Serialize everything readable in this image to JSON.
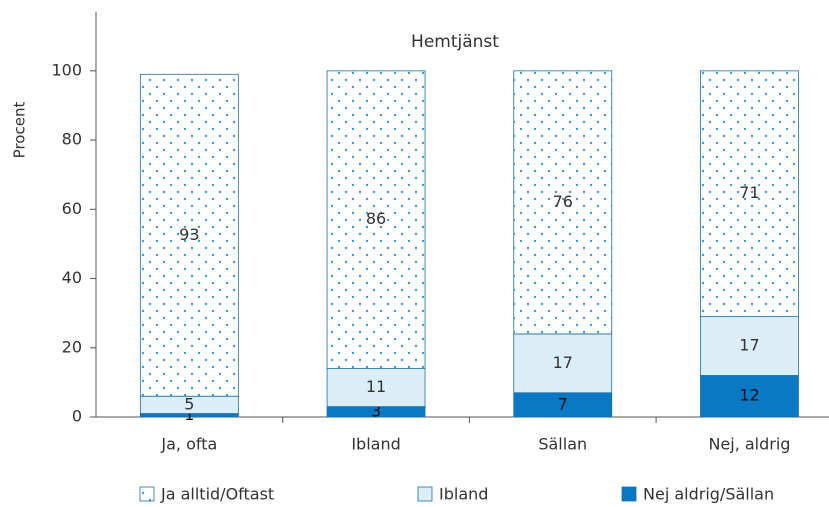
{
  "chart_data": {
    "type": "stacked_bar",
    "title": "Hemtjänst",
    "y_label": "Procent",
    "categories": [
      "Ja, ofta",
      "Ibland",
      "Sällan",
      "Nej, aldrig"
    ],
    "series": [
      {
        "name": "Ja alltid/Oftast",
        "color": "#3d9bd8",
        "pattern": "dots",
        "values": [
          93,
          86,
          76,
          71
        ]
      },
      {
        "name": "Ibland",
        "color": "#dbeef8",
        "values": [
          5,
          11,
          17,
          17
        ]
      },
      {
        "name": "Nej aldrig/Sällan",
        "color": "#0a78c2",
        "values": [
          1,
          3,
          7,
          12
        ]
      }
    ],
    "ylim": [
      0,
      117
    ],
    "yticks": [
      0,
      20,
      40,
      60,
      80,
      100
    ]
  }
}
